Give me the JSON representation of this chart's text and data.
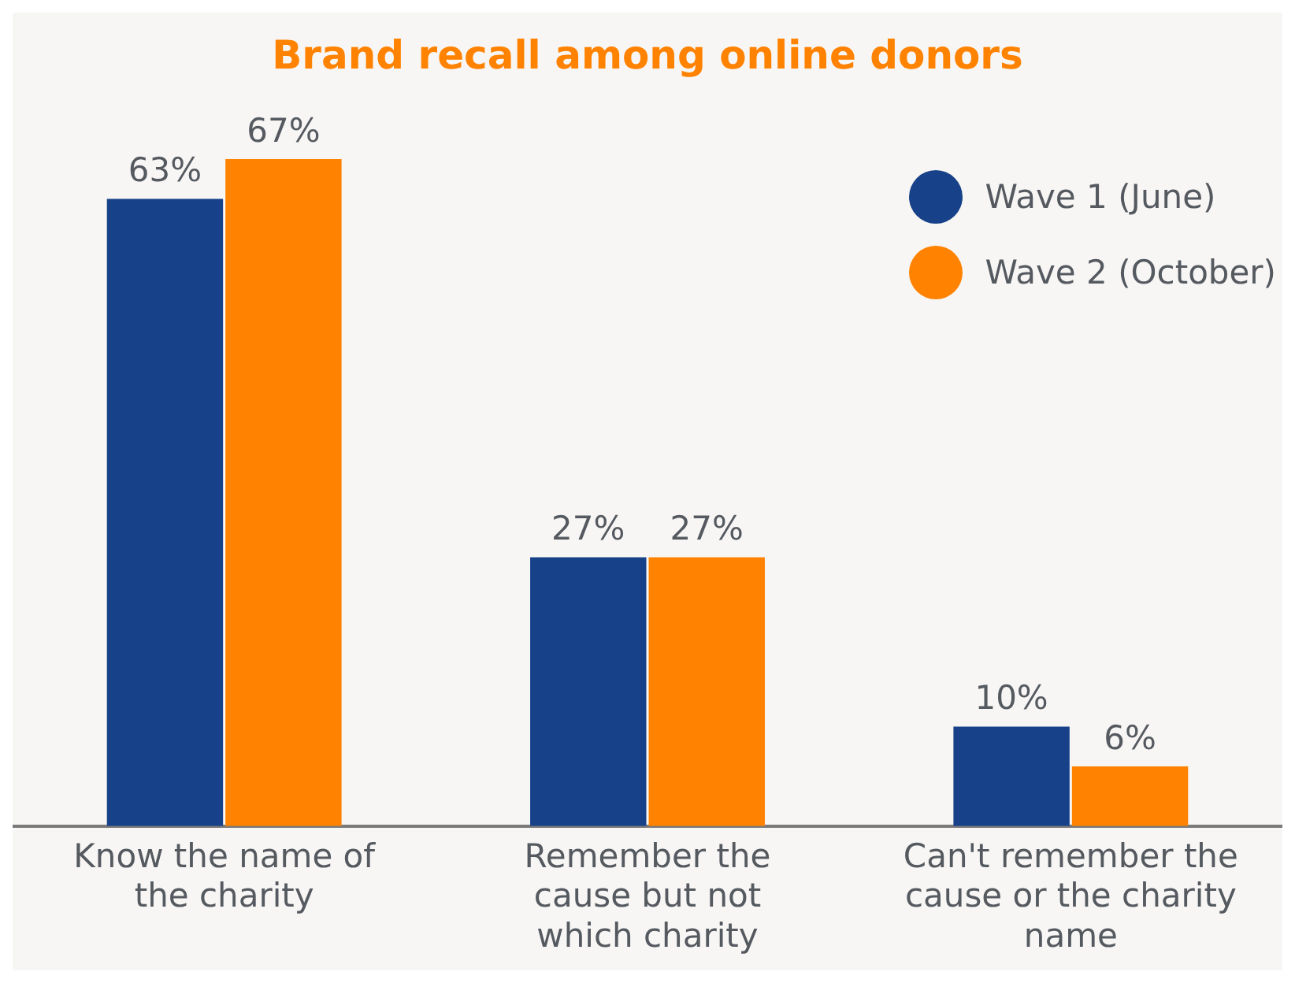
{
  "chart_data": {
    "type": "bar",
    "title": "Brand recall among online donors",
    "categories": [
      "Know the name of the charity",
      "Remember the cause but not which charity",
      "Can't remember the cause or the charity name"
    ],
    "series": [
      {
        "name": "Wave 1 (June)",
        "color": "#174289",
        "values": [
          63,
          27,
          10
        ],
        "value_labels": [
          "63%",
          "27%",
          "10%"
        ]
      },
      {
        "name": "Wave 2 (October)",
        "color": "#ff8200",
        "values": [
          67,
          27,
          6
        ],
        "value_labels": [
          "67%",
          "27%",
          "6%"
        ]
      }
    ],
    "grid": false,
    "legend": "top right"
  }
}
